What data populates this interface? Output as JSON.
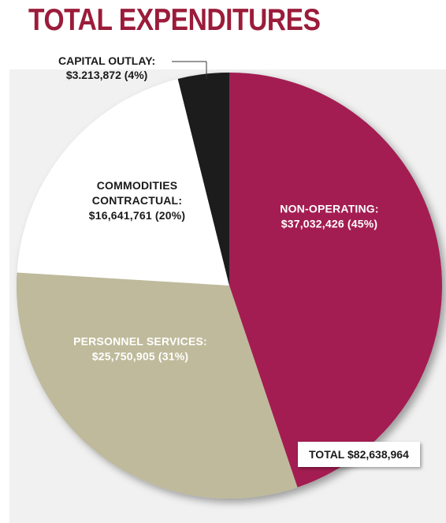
{
  "title": "TOTAL EXPENDITURES",
  "total_label": "TOTAL $82,638,964",
  "chart_data": {
    "type": "pie",
    "title": "TOTAL EXPENDITURES",
    "total": 82638964,
    "slices": [
      {
        "label_lines": [
          "NON-OPERATING:",
          "$37,032,426 (45%)"
        ],
        "value": 37032426,
        "percent": 45,
        "color": "#a31d52",
        "text_style": "light"
      },
      {
        "label_lines": [
          "PERSONNEL SERVICES:",
          "$25,750,905 (31%)"
        ],
        "value": 25750905,
        "percent": 31,
        "color": "#bfba9b",
        "text_style": "light"
      },
      {
        "label_lines": [
          "COMMODITIES",
          "CONTRACTUAL:",
          "$16,641,761 (20%)"
        ],
        "value": 16641761,
        "percent": 20,
        "color": "#ffffff",
        "text_style": "dark"
      },
      {
        "label_lines": [
          "CAPITAL OUTLAY:",
          "$3.213,872 (4%)"
        ],
        "value": 3213872,
        "percent": 4,
        "color": "#1c1c1c",
        "text_style": "callout"
      }
    ]
  }
}
